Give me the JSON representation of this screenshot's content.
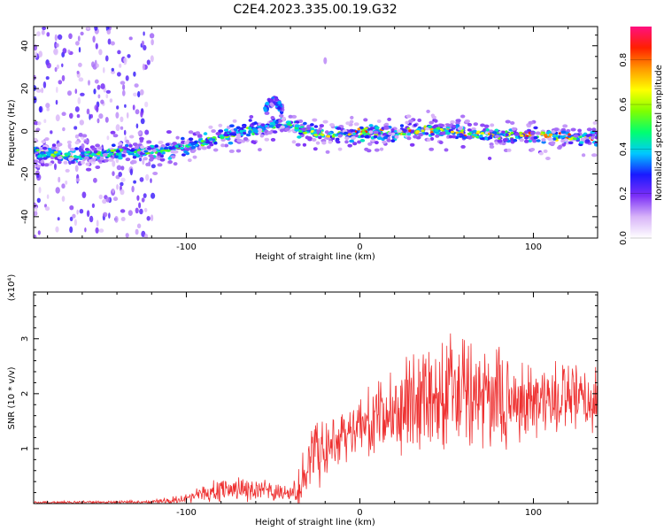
{
  "title": "C2E4.2023.335.00.19.G32",
  "chart_data": [
    {
      "type": "heatmap",
      "xlabel": "Height of straight line (km)",
      "ylabel": "Frequency (Hz)",
      "xlim": [
        -188,
        137
      ],
      "ylim": [
        -50,
        49
      ],
      "xticks": [
        -100,
        0,
        100
      ],
      "xtick_labels": [
        "-100",
        "0",
        "100"
      ],
      "yticks": [
        -40,
        -20,
        0,
        20,
        40
      ],
      "ytick_labels": [
        "-40",
        "-20",
        "0",
        "20",
        "40"
      ],
      "colorbar": {
        "label": "Normalized spectral amplitude",
        "range": [
          0,
          0.95
        ],
        "ticks": [
          0.0,
          0.2,
          0.4,
          0.6,
          0.8
        ],
        "tick_labels": [
          "0.0",
          "0.2",
          "0.4",
          "0.6",
          "0.8"
        ],
        "colors": [
          "#ffffff",
          "#d8b4f8",
          "#7b2ff7",
          "#1a1aff",
          "#00c8ff",
          "#00ff70",
          "#80ff00",
          "#ffff00",
          "#ff9900",
          "#ff2000",
          "#ff1080"
        ]
      },
      "ridge": {
        "x": [
          -185,
          -165,
          -150,
          -135,
          -120,
          -100,
          -90,
          -80,
          -70,
          -60,
          -50,
          -40,
          -30,
          -20,
          0,
          20,
          40,
          60,
          80,
          100,
          120,
          135
        ],
        "freq": [
          -10,
          -12,
          -11,
          -9,
          -10,
          -7,
          -5,
          -3,
          -1,
          1,
          3,
          3,
          0,
          -2,
          -1,
          -1,
          1,
          -1,
          -2,
          -2,
          -3,
          -3
        ]
      },
      "branch": {
        "x": [
          -55,
          -52,
          -48,
          -44
        ],
        "freq": [
          10,
          13,
          14,
          10
        ]
      }
    },
    {
      "type": "line",
      "xlabel": "Height of straight line (km)",
      "ylabel": "SNR (10 * v/v)",
      "y_multiplier": "(x10⁴)",
      "xlim": [
        -188,
        137
      ],
      "ylim": [
        0,
        3.85
      ],
      "xticks": [
        -100,
        0,
        100
      ],
      "xtick_labels": [
        "-100",
        "0",
        "100"
      ],
      "yticks": [
        1,
        2,
        3
      ],
      "ytick_labels": [
        "1",
        "2",
        "3"
      ],
      "series": [
        {
          "color": "#ee3030",
          "envelope": {
            "x": [
              -188,
              -120,
              -105,
              -90,
              -80,
              -70,
              -60,
              -50,
              -40,
              -35,
              -30,
              -25,
              -20,
              -15,
              -10,
              -5,
              0,
              10,
              20,
              30,
              40,
              50,
              60,
              70,
              80,
              90,
              100,
              110,
              120,
              130,
              137
            ],
            "mean": [
              0.02,
              0.03,
              0.08,
              0.18,
              0.25,
              0.28,
              0.25,
              0.2,
              0.18,
              0.3,
              0.8,
              1.0,
              0.9,
              1.2,
              1.25,
              1.35,
              1.4,
              1.5,
              1.7,
              1.9,
              2.0,
              2.0,
              1.95,
              1.95,
              1.9,
              1.85,
              1.85,
              1.9,
              1.9,
              1.85,
              1.85
            ],
            "spread": [
              0.02,
              0.03,
              0.08,
              0.12,
              0.2,
              0.22,
              0.2,
              0.15,
              0.12,
              0.3,
              0.5,
              0.6,
              0.5,
              0.5,
              0.4,
              0.45,
              0.5,
              0.6,
              0.7,
              0.8,
              0.9,
              1.1,
              0.9,
              0.85,
              0.8,
              0.75,
              0.7,
              0.65,
              0.6,
              0.55,
              0.5
            ]
          }
        }
      ]
    }
  ]
}
